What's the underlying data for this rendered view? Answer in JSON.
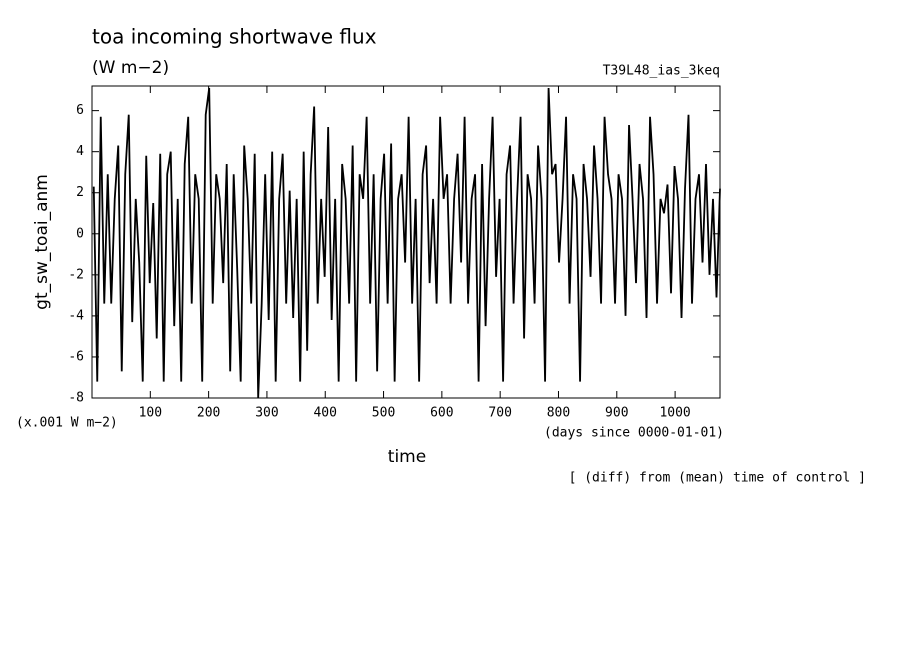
{
  "chart_data": {
    "type": "line",
    "title": "toa incoming shortwave flux",
    "subtitle": "(W m−2)",
    "run_label": "T39L48_ias_3keq",
    "ylabel": "gt_sw_toai_anm",
    "y_unit": "(x.001 W m−2)",
    "x_unit": "(days since 0000-01-01)",
    "xlabel": "time",
    "note": "[ (diff) from (mean) time of control ]",
    "color": "#000000",
    "xlim": [
      0,
      1077
    ],
    "ylim": [
      -8,
      7.2
    ],
    "xticks": [
      100,
      200,
      300,
      400,
      500,
      600,
      700,
      800,
      900,
      1000
    ],
    "yticks": [
      -8,
      -6,
      -4,
      -2,
      0,
      2,
      4,
      6
    ],
    "x": [
      3,
      9,
      15,
      21,
      27,
      33,
      39,
      45,
      51,
      57,
      63,
      69,
      75,
      81,
      87,
      93,
      99,
      105,
      111,
      117,
      123,
      129,
      135,
      141,
      147,
      153,
      159,
      165,
      171,
      177,
      183,
      189,
      195,
      201,
      207,
      213,
      219,
      225,
      231,
      237,
      243,
      249,
      255,
      261,
      267,
      273,
      279,
      285,
      291,
      297,
      303,
      309,
      315,
      321,
      327,
      333,
      339,
      345,
      351,
      357,
      363,
      369,
      375,
      381,
      387,
      393,
      399,
      405,
      411,
      417,
      423,
      429,
      435,
      441,
      447,
      453,
      459,
      465,
      471,
      477,
      483,
      489,
      495,
      501,
      507,
      513,
      519,
      525,
      531,
      537,
      543,
      549,
      555,
      561,
      567,
      573,
      579,
      585,
      591,
      597,
      603,
      609,
      615,
      621,
      627,
      633,
      639,
      645,
      651,
      657,
      663,
      669,
      675,
      681,
      687,
      693,
      699,
      705,
      711,
      717,
      723,
      729,
      735,
      741,
      747,
      753,
      759,
      765,
      771,
      777,
      783,
      789,
      795,
      801,
      807,
      813,
      819,
      825,
      831,
      837,
      843,
      849,
      855,
      861,
      867,
      873,
      879,
      885,
      891,
      897,
      903,
      909,
      915,
      921,
      927,
      933,
      939,
      945,
      951,
      957,
      963,
      969,
      975,
      981,
      987,
      993,
      999,
      1005,
      1011,
      1017,
      1023,
      1029,
      1035,
      1041,
      1047,
      1053,
      1059,
      1065,
      1071,
      1077
    ],
    "values": [
      2.3,
      -7.2,
      5.7,
      -3.4,
      2.9,
      -3.4,
      1.7,
      4.3,
      -6.7,
      2.9,
      5.8,
      -4.3,
      1.7,
      -1.4,
      -7.2,
      3.8,
      -2.4,
      1.5,
      -5.1,
      3.9,
      -7.2,
      2.9,
      4.0,
      -4.5,
      1.7,
      -7.2,
      3.4,
      5.7,
      -3.4,
      2.9,
      1.7,
      -7.2,
      5.8,
      7.1,
      -3.4,
      2.9,
      1.7,
      -2.4,
      3.4,
      -6.7,
      2.9,
      -1.7,
      -7.2,
      4.3,
      1.7,
      -3.4,
      3.9,
      -8.0,
      -3.4,
      2.9,
      -4.2,
      4.0,
      -7.2,
      1.7,
      3.9,
      -3.4,
      2.1,
      -4.1,
      1.7,
      -7.2,
      4.0,
      -5.7,
      2.9,
      6.2,
      -3.4,
      1.7,
      -2.1,
      5.2,
      -4.2,
      1.7,
      -7.2,
      3.4,
      1.7,
      -3.4,
      4.3,
      -7.2,
      2.9,
      1.7,
      5.7,
      -3.4,
      2.9,
      -6.7,
      1.7,
      3.9,
      -3.4,
      4.4,
      -7.2,
      1.7,
      2.9,
      -1.4,
      5.7,
      -3.4,
      1.7,
      -7.2,
      2.9,
      4.3,
      -2.4,
      1.7,
      -3.4,
      5.7,
      1.7,
      2.9,
      -3.4,
      1.7,
      3.9,
      -1.4,
      5.7,
      -3.4,
      1.7,
      2.9,
      -7.2,
      3.4,
      -4.5,
      1.7,
      5.7,
      -2.1,
      1.7,
      -7.2,
      2.9,
      4.3,
      -3.4,
      1.7,
      5.7,
      -5.1,
      2.9,
      1.7,
      -3.4,
      4.3,
      1.7,
      -7.2,
      7.1,
      2.9,
      3.4,
      -1.4,
      1.7,
      5.7,
      -3.4,
      2.9,
      1.7,
      -7.2,
      3.4,
      1.7,
      -2.1,
      4.3,
      1.7,
      -3.4,
      5.7,
      2.9,
      1.7,
      -3.4,
      2.9,
      1.7,
      -4.0,
      5.3,
      1.7,
      -2.4,
      3.4,
      1.7,
      -4.1,
      5.7,
      2.9,
      -3.4,
      1.7,
      1.0,
      2.4,
      -2.9,
      3.3,
      1.7,
      -4.1,
      2.2,
      5.8,
      -3.4,
      1.7,
      2.9,
      -1.4,
      3.4,
      -2.0,
      1.7,
      -3.1,
      2.2
    ]
  }
}
